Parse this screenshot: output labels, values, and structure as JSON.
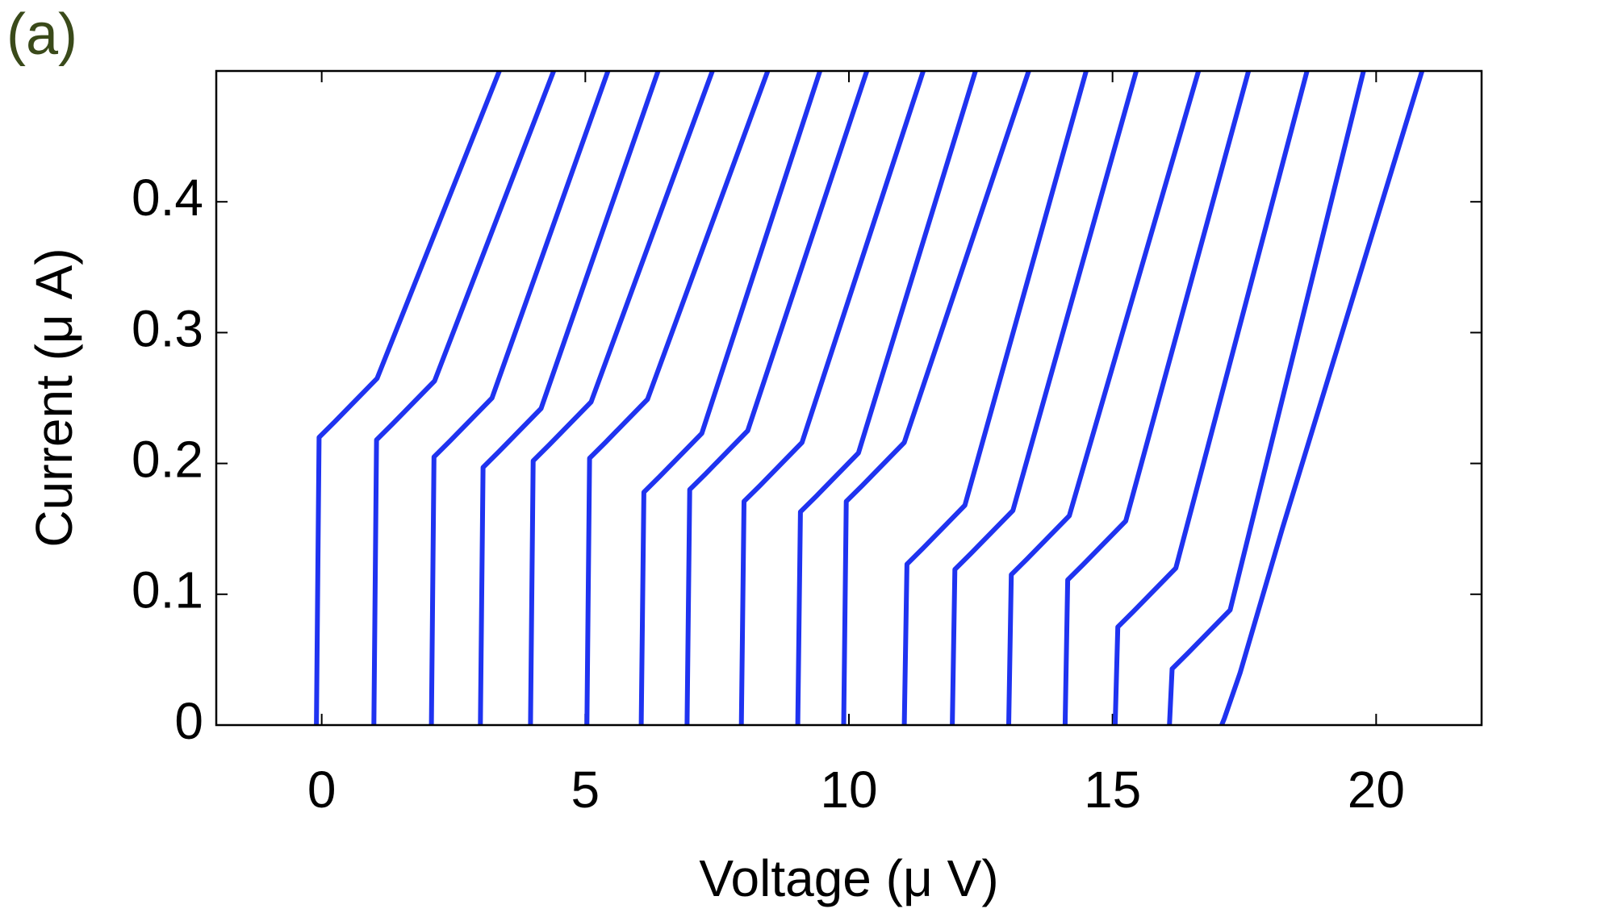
{
  "chart_data": {
    "type": "line",
    "title": "(a)",
    "xlabel": "Voltage (μ V)",
    "ylabel": "Current (μ A)",
    "color": "#1f33f0",
    "xlim": [
      -2,
      22
    ],
    "xticks": [
      0,
      5,
      10,
      15,
      20
    ],
    "ylim": [
      0,
      0.5
    ],
    "yticks": [
      0,
      0.1,
      0.2,
      0.3,
      0.4
    ],
    "grid": false,
    "series": [
      {
        "x": [
          -0.1,
          -0.05,
          0.25,
          1.05,
          3.37
        ],
        "values": [
          0,
          0.22,
          0.232,
          0.265,
          0.5
        ]
      },
      {
        "x": [
          0.99,
          1.04,
          1.34,
          2.14,
          4.4
        ],
        "values": [
          0,
          0.218,
          0.23,
          0.263,
          0.5
        ]
      },
      {
        "x": [
          2.08,
          2.13,
          2.43,
          3.23,
          5.43
        ],
        "values": [
          0,
          0.205,
          0.217,
          0.25,
          0.5
        ]
      },
      {
        "x": [
          3.01,
          3.06,
          3.36,
          4.16,
          6.38
        ],
        "values": [
          0,
          0.197,
          0.209,
          0.242,
          0.5
        ]
      },
      {
        "x": [
          3.96,
          4.01,
          4.31,
          5.11,
          7.41
        ],
        "values": [
          0,
          0.202,
          0.214,
          0.247,
          0.5
        ]
      },
      {
        "x": [
          5.03,
          5.08,
          5.38,
          6.18,
          8.46
        ],
        "values": [
          0,
          0.204,
          0.216,
          0.249,
          0.5
        ]
      },
      {
        "x": [
          6.06,
          6.11,
          6.41,
          7.21,
          9.45
        ],
        "values": [
          0,
          0.178,
          0.19,
          0.223,
          0.5
        ]
      },
      {
        "x": [
          6.93,
          6.98,
          7.28,
          8.08,
          10.34
        ],
        "values": [
          0,
          0.18,
          0.192,
          0.225,
          0.5
        ]
      },
      {
        "x": [
          7.96,
          8.01,
          8.31,
          9.11,
          11.41
        ],
        "values": [
          0,
          0.171,
          0.183,
          0.216,
          0.5
        ]
      },
      {
        "x": [
          9.03,
          9.08,
          9.38,
          10.18,
          12.4
        ],
        "values": [
          0,
          0.163,
          0.175,
          0.208,
          0.5
        ]
      },
      {
        "x": [
          9.9,
          9.95,
          10.25,
          11.05,
          13.41
        ],
        "values": [
          0,
          0.171,
          0.183,
          0.216,
          0.5
        ]
      },
      {
        "x": [
          11.05,
          11.1,
          11.4,
          12.2,
          14.5
        ],
        "values": [
          0,
          0.123,
          0.135,
          0.168,
          0.5
        ]
      },
      {
        "x": [
          11.96,
          12.01,
          12.31,
          13.11,
          15.45
        ],
        "values": [
          0,
          0.119,
          0.131,
          0.164,
          0.5
        ]
      },
      {
        "x": [
          13.03,
          13.08,
          13.38,
          14.18,
          16.63
        ],
        "values": [
          0,
          0.115,
          0.127,
          0.16,
          0.5
        ]
      },
      {
        "x": [
          14.1,
          14.15,
          14.45,
          15.25,
          17.58
        ],
        "values": [
          0,
          0.111,
          0.123,
          0.156,
          0.5
        ]
      },
      {
        "x": [
          15.05,
          15.1,
          15.4,
          16.2,
          18.69
        ],
        "values": [
          0,
          0.075,
          0.087,
          0.12,
          0.5
        ]
      },
      {
        "x": [
          16.08,
          16.13,
          16.43,
          17.23,
          19.76
        ],
        "values": [
          0,
          0.043,
          0.055,
          0.088,
          0.5
        ]
      },
      {
        "x": [
          17.07,
          17.12,
          17.42,
          18.22,
          20.87
        ],
        "values": [
          0,
          0.005,
          0.04,
          0.15,
          0.5
        ]
      }
    ]
  }
}
